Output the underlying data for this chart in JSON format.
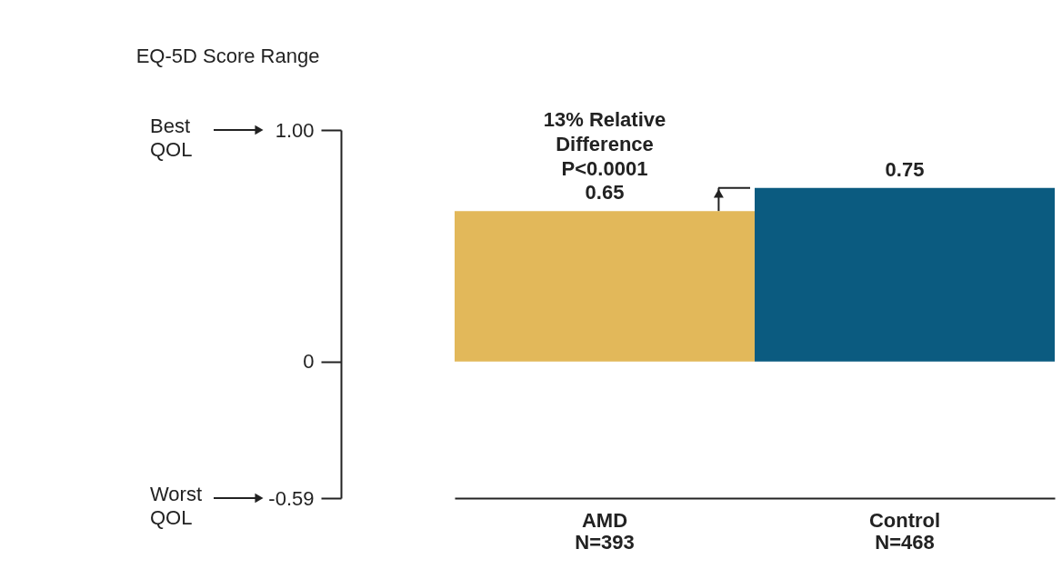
{
  "chart_data": {
    "type": "bar",
    "ylabel": "EQ-5D Score Range",
    "categories": [
      "AMD\nN=393",
      "Control\nN=468"
    ],
    "values": [
      0.65,
      0.75
    ],
    "colors": [
      "#e2b85a",
      "#0b5b80"
    ],
    "ylim": [
      -0.59,
      1.0
    ],
    "yticks": [
      {
        "value": 1.0,
        "label": "1.00"
      },
      0,
      -0.59
    ],
    "data_labels": true,
    "grid": false,
    "legend": false,
    "annotations": [
      "13% Relative\nDifference\nP<0.0001",
      "Best\nQOL",
      "Worst\nQOL"
    ]
  }
}
